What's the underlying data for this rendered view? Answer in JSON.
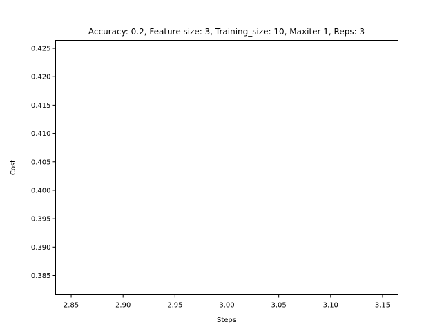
{
  "chart_data": {
    "type": "line",
    "title": "Accuracy: 0.2, Feature size: 3, Training_size: 10, Maxiter 1, Reps: 3",
    "xlabel": "Steps",
    "ylabel": "Cost",
    "xlim": [
      2.835,
      3.165
    ],
    "ylim": [
      0.3816,
      0.4264
    ],
    "xticks": [
      2.85,
      2.9,
      2.95,
      3.0,
      3.05,
      3.1,
      3.15
    ],
    "xtick_labels": [
      "2.85",
      "2.90",
      "2.95",
      "3.00",
      "3.05",
      "3.10",
      "3.15"
    ],
    "yticks": [
      0.385,
      0.39,
      0.395,
      0.4,
      0.405,
      0.41,
      0.415,
      0.42,
      0.425
    ],
    "ytick_labels": [
      "0.385",
      "0.390",
      "0.395",
      "0.400",
      "0.405",
      "0.410",
      "0.415",
      "0.420",
      "0.425"
    ],
    "series": [],
    "grid": false,
    "legend": "none",
    "colors": {
      "axes": "#000000",
      "background": "#ffffff"
    }
  }
}
